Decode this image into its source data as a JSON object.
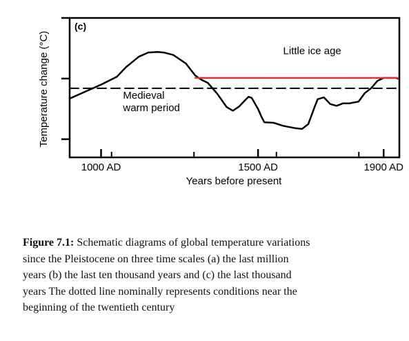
{
  "chart_data": {
    "type": "line",
    "panel_label": "(c)",
    "title": "",
    "xlabel": "Years before present",
    "ylabel": "Temperature change (°C)",
    "x_ticks": [
      {
        "value": 1000,
        "label": "1000 AD"
      },
      {
        "value": 1500,
        "label": "1500 AD"
      },
      {
        "value": 1900,
        "label": "1900 AD"
      }
    ],
    "xlim": [
      900,
      1950
    ],
    "y_ticks": [
      -1,
      0,
      1
    ],
    "ylim": [
      -1.3,
      1.0
    ],
    "grid": false,
    "series": [
      {
        "name": "",
        "style": "solid",
        "color": "#000000",
        "x": [
          900,
          1000,
          1050,
          1080,
          1120,
          1150,
          1180,
          1200,
          1230,
          1270,
          1300,
          1320,
          1340,
          1370,
          1400,
          1420,
          1440,
          1460,
          1470,
          1480,
          1500,
          1510,
          1520,
          1550,
          1580,
          1620,
          1640,
          1660,
          1680,
          1690,
          1710,
          1730,
          1750,
          1770,
          1790,
          1820,
          1840,
          1860,
          1880,
          1900,
          1920,
          1940,
          1945
        ],
        "y": [
          -0.33,
          -0.1,
          0.03,
          0.19,
          0.36,
          0.43,
          0.44,
          0.43,
          0.39,
          0.25,
          0.05,
          -0.02,
          -0.07,
          -0.25,
          -0.47,
          -0.53,
          -0.46,
          -0.35,
          -0.3,
          -0.32,
          -0.5,
          -0.62,
          -0.72,
          -0.73,
          -0.78,
          -0.82,
          -0.83,
          -0.75,
          -0.47,
          -0.34,
          -0.31,
          -0.42,
          -0.45,
          -0.41,
          -0.41,
          -0.38,
          -0.24,
          -0.16,
          -0.04,
          0.01,
          0.01,
          0.01,
          0.0
        ]
      },
      {
        "name": "",
        "style": "dashed",
        "color": "#000000",
        "x": [
          900,
          1950
        ],
        "y": [
          -0.16,
          -0.16
        ]
      },
      {
        "name": "",
        "style": "solid",
        "color": "#e03030",
        "x": [
          1300,
          1945
        ],
        "y": [
          0.01,
          0.01
        ]
      }
    ],
    "annotations": [
      {
        "lines": [
          "Little ice age"
        ],
        "x": 1580,
        "y": 0.4
      },
      {
        "lines": [
          "Medieval",
          "warm period"
        ],
        "x": 1070,
        "y": -0.33
      }
    ]
  },
  "caption": {
    "lead": "Figure 7.1:",
    "lines": [
      " Schematic diagrams of global temperature variations",
      "since the Pleistocene on three time scales  (a)  the last million",
      "years  (b)  the last ten thousand years  and  (c)  the last thousand",
      "years  The dotted line nominally represents conditions near the",
      "beginning of the twentieth century"
    ]
  }
}
